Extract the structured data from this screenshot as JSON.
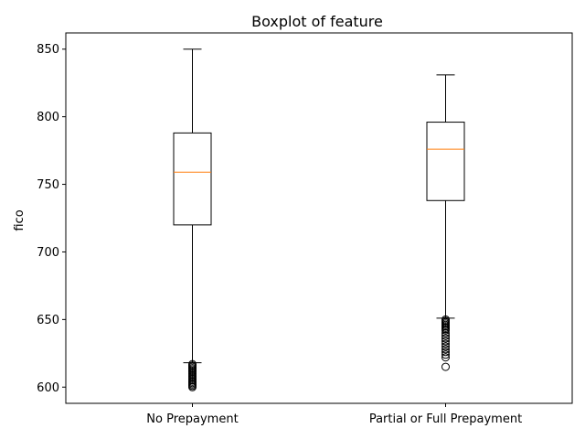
{
  "chart_data": {
    "type": "boxplot",
    "title": "Boxplot of feature",
    "xlabel": "",
    "ylabel": "fico",
    "ylim": [
      588,
      862
    ],
    "yticks": [
      600,
      650,
      700,
      750,
      800,
      850
    ],
    "grid": false,
    "categories": [
      "No Prepayment",
      "Partial or Full Prepayment"
    ],
    "boxes": [
      {
        "category": "No Prepayment",
        "whisker_low": 618,
        "q1": 720,
        "median": 759,
        "q3": 788,
        "whisker_high": 850,
        "outliers": [
          617,
          616,
          615,
          614,
          613,
          612,
          611,
          610,
          609,
          608,
          607,
          606,
          605,
          604,
          603,
          602,
          601,
          600
        ]
      },
      {
        "category": "Partial or Full Prepayment",
        "whisker_low": 651,
        "q1": 738,
        "median": 776,
        "q3": 796,
        "whisker_high": 831,
        "outliers": [
          650,
          649,
          648,
          647,
          646,
          645,
          644,
          643,
          642,
          640,
          638,
          636,
          634,
          632,
          630,
          628,
          626,
          624,
          622,
          615
        ]
      }
    ],
    "colors": {
      "box": "#000000",
      "median": "#ff7f0e",
      "background": "#ffffff"
    }
  }
}
